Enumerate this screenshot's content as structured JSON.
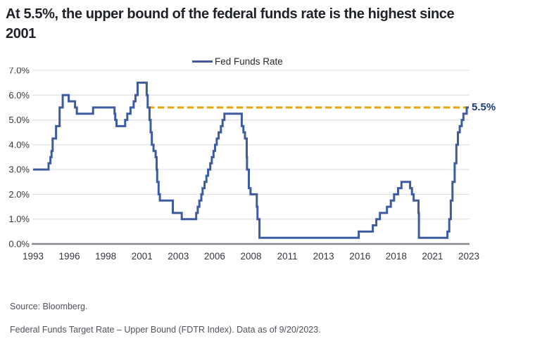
{
  "title": {
    "line1": "At 5.5%, the upper bound of the federal funds rate is the highest since",
    "line2": "2001"
  },
  "legend": {
    "label": "Fed Funds Rate"
  },
  "annotation": {
    "label": "5.5%"
  },
  "footer": {
    "source": "Source: Bloomberg.",
    "note": "Federal Funds Target Rate – Upper Bound (FDTR Index). Data as of 9/20/2023."
  },
  "colors": {
    "line": "#3C5BA0",
    "reference_dash": "#E6A50E",
    "annotation": "#1C3B7D",
    "grid": "#D8DADE",
    "axis": "#85898F",
    "tick_label": "#34383F",
    "title": "#1F2228"
  },
  "chart_data": {
    "type": "line",
    "title": "Fed Funds Rate",
    "xlabel": "",
    "ylabel": "",
    "grid": "horizontal",
    "legend_position": "top-center",
    "xlim": [
      1993.0,
      2023.72
    ],
    "ylim": [
      0,
      7
    ],
    "y_ticks": [
      {
        "value": 7,
        "label": "7.0%"
      },
      {
        "value": 6,
        "label": "6.0%"
      },
      {
        "value": 5,
        "label": "5.0%"
      },
      {
        "value": 4,
        "label": "4.0%"
      },
      {
        "value": 3,
        "label": "3.0%"
      },
      {
        "value": 2,
        "label": "2.0%"
      },
      {
        "value": 1,
        "label": "1.0%"
      },
      {
        "value": 0,
        "label": "0.0%"
      }
    ],
    "x_tick_labels": [
      "1993",
      "1996",
      "1998",
      "2001",
      "2003",
      "2006",
      "2008",
      "2011",
      "2013",
      "2016",
      "2018",
      "2021",
      "2023"
    ],
    "reference_line": {
      "value": 5.5,
      "start_x": 2001.08,
      "label": "5.5%"
    },
    "series": [
      {
        "name": "Fed Funds Rate",
        "style": "step-after",
        "step_points": [
          [
            1993.0,
            3.0
          ],
          [
            1994.09,
            3.25
          ],
          [
            1994.22,
            3.5
          ],
          [
            1994.3,
            3.75
          ],
          [
            1994.38,
            4.25
          ],
          [
            1994.62,
            4.75
          ],
          [
            1994.87,
            5.5
          ],
          [
            1995.09,
            6.0
          ],
          [
            1995.51,
            5.75
          ],
          [
            1995.96,
            5.5
          ],
          [
            1996.08,
            5.25
          ],
          [
            1997.23,
            5.5
          ],
          [
            1998.74,
            5.25
          ],
          [
            1998.79,
            5.0
          ],
          [
            1998.88,
            4.75
          ],
          [
            1999.49,
            5.0
          ],
          [
            1999.64,
            5.25
          ],
          [
            1999.87,
            5.5
          ],
          [
            2000.09,
            5.75
          ],
          [
            2000.22,
            6.0
          ],
          [
            2000.37,
            6.5
          ],
          [
            2001.01,
            6.0
          ],
          [
            2001.08,
            5.5
          ],
          [
            2001.21,
            5.0
          ],
          [
            2001.29,
            4.5
          ],
          [
            2001.37,
            4.0
          ],
          [
            2001.49,
            3.75
          ],
          [
            2001.64,
            3.5
          ],
          [
            2001.71,
            3.0
          ],
          [
            2001.75,
            2.5
          ],
          [
            2001.85,
            2.0
          ],
          [
            2001.94,
            1.75
          ],
          [
            2002.85,
            1.25
          ],
          [
            2003.48,
            1.0
          ],
          [
            2004.5,
            1.25
          ],
          [
            2004.61,
            1.5
          ],
          [
            2004.72,
            1.75
          ],
          [
            2004.86,
            2.0
          ],
          [
            2004.95,
            2.25
          ],
          [
            2005.09,
            2.5
          ],
          [
            2005.22,
            2.75
          ],
          [
            2005.34,
            3.0
          ],
          [
            2005.49,
            3.25
          ],
          [
            2005.6,
            3.5
          ],
          [
            2005.72,
            3.75
          ],
          [
            2005.83,
            4.0
          ],
          [
            2005.95,
            4.25
          ],
          [
            2006.08,
            4.5
          ],
          [
            2006.24,
            4.75
          ],
          [
            2006.36,
            5.0
          ],
          [
            2006.49,
            5.25
          ],
          [
            2007.71,
            4.75
          ],
          [
            2007.83,
            4.5
          ],
          [
            2007.94,
            4.25
          ],
          [
            2008.06,
            3.5
          ],
          [
            2008.08,
            3.0
          ],
          [
            2008.21,
            2.25
          ],
          [
            2008.33,
            2.0
          ],
          [
            2008.77,
            1.5
          ],
          [
            2008.82,
            1.0
          ],
          [
            2008.96,
            0.25
          ],
          [
            2015.96,
            0.5
          ],
          [
            2016.95,
            0.75
          ],
          [
            2017.2,
            1.0
          ],
          [
            2017.45,
            1.25
          ],
          [
            2017.95,
            1.5
          ],
          [
            2018.22,
            1.75
          ],
          [
            2018.45,
            2.0
          ],
          [
            2018.73,
            2.25
          ],
          [
            2018.97,
            2.5
          ],
          [
            2019.58,
            2.25
          ],
          [
            2019.71,
            2.0
          ],
          [
            2019.83,
            1.75
          ],
          [
            2020.17,
            1.25
          ],
          [
            2020.2,
            0.25
          ],
          [
            2022.21,
            0.5
          ],
          [
            2022.34,
            1.0
          ],
          [
            2022.45,
            1.75
          ],
          [
            2022.57,
            2.5
          ],
          [
            2022.72,
            3.25
          ],
          [
            2022.84,
            4.0
          ],
          [
            2022.95,
            4.5
          ],
          [
            2023.08,
            4.75
          ],
          [
            2023.22,
            5.0
          ],
          [
            2023.34,
            5.25
          ],
          [
            2023.57,
            5.5
          ],
          [
            2023.72,
            5.5
          ]
        ]
      }
    ]
  }
}
